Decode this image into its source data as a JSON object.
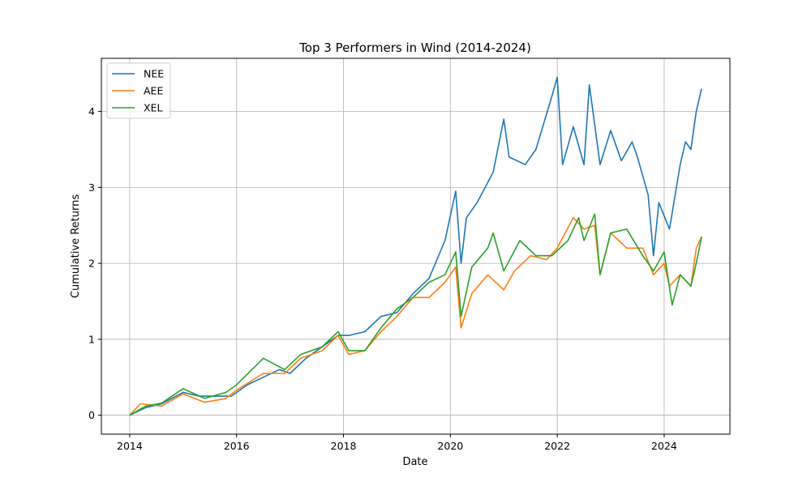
{
  "chart_data": {
    "type": "line",
    "title": "Top 3 Performers in Wind (2014-2024)",
    "xlabel": "Date",
    "ylabel": "Cumulative Returns",
    "xlim": [
      2013.47,
      2025.23
    ],
    "ylim": [
      -0.25,
      4.7
    ],
    "xticks": [
      2014,
      2016,
      2018,
      2020,
      2022,
      2024
    ],
    "xtick_labels": [
      "2014",
      "2016",
      "2018",
      "2020",
      "2022",
      "2024"
    ],
    "yticks": [
      0,
      1,
      2,
      3,
      4
    ],
    "ytick_labels": [
      "0",
      "1",
      "2",
      "3",
      "4"
    ],
    "grid": true,
    "legend_position": "top-left",
    "series": [
      {
        "name": "NEE",
        "color": "#1f77b4",
        "points": [
          [
            2014.0,
            0.0
          ],
          [
            2014.3,
            0.1
          ],
          [
            2014.6,
            0.15
          ],
          [
            2015.0,
            0.3
          ],
          [
            2015.3,
            0.25
          ],
          [
            2015.6,
            0.25
          ],
          [
            2015.9,
            0.25
          ],
          [
            2016.2,
            0.4
          ],
          [
            2016.5,
            0.5
          ],
          [
            2016.8,
            0.6
          ],
          [
            2017.0,
            0.55
          ],
          [
            2017.3,
            0.75
          ],
          [
            2017.6,
            0.9
          ],
          [
            2017.9,
            1.05
          ],
          [
            2018.1,
            1.05
          ],
          [
            2018.4,
            1.1
          ],
          [
            2018.7,
            1.3
          ],
          [
            2019.0,
            1.35
          ],
          [
            2019.3,
            1.6
          ],
          [
            2019.6,
            1.8
          ],
          [
            2019.9,
            2.3
          ],
          [
            2020.1,
            2.95
          ],
          [
            2020.2,
            2.0
          ],
          [
            2020.3,
            2.6
          ],
          [
            2020.5,
            2.8
          ],
          [
            2020.8,
            3.2
          ],
          [
            2021.0,
            3.9
          ],
          [
            2021.1,
            3.4
          ],
          [
            2021.4,
            3.3
          ],
          [
            2021.6,
            3.5
          ],
          [
            2021.9,
            4.2
          ],
          [
            2022.0,
            4.45
          ],
          [
            2022.1,
            3.3
          ],
          [
            2022.3,
            3.8
          ],
          [
            2022.5,
            3.3
          ],
          [
            2022.6,
            4.35
          ],
          [
            2022.8,
            3.3
          ],
          [
            2023.0,
            3.75
          ],
          [
            2023.2,
            3.35
          ],
          [
            2023.4,
            3.6
          ],
          [
            2023.5,
            3.4
          ],
          [
            2023.7,
            2.9
          ],
          [
            2023.8,
            2.1
          ],
          [
            2023.9,
            2.8
          ],
          [
            2024.1,
            2.45
          ],
          [
            2024.3,
            3.3
          ],
          [
            2024.4,
            3.6
          ],
          [
            2024.5,
            3.5
          ],
          [
            2024.6,
            4.0
          ],
          [
            2024.7,
            4.3
          ]
        ]
      },
      {
        "name": "AEE",
        "color": "#ff7f0e",
        "points": [
          [
            2014.0,
            0.0
          ],
          [
            2014.2,
            0.15
          ],
          [
            2014.6,
            0.12
          ],
          [
            2015.0,
            0.28
          ],
          [
            2015.4,
            0.17
          ],
          [
            2015.8,
            0.22
          ],
          [
            2016.0,
            0.33
          ],
          [
            2016.5,
            0.55
          ],
          [
            2016.9,
            0.55
          ],
          [
            2017.2,
            0.75
          ],
          [
            2017.6,
            0.85
          ],
          [
            2017.9,
            1.05
          ],
          [
            2018.1,
            0.8
          ],
          [
            2018.4,
            0.85
          ],
          [
            2018.7,
            1.1
          ],
          [
            2019.0,
            1.3
          ],
          [
            2019.3,
            1.55
          ],
          [
            2019.6,
            1.55
          ],
          [
            2019.9,
            1.75
          ],
          [
            2020.1,
            1.95
          ],
          [
            2020.2,
            1.15
          ],
          [
            2020.4,
            1.6
          ],
          [
            2020.7,
            1.85
          ],
          [
            2021.0,
            1.65
          ],
          [
            2021.2,
            1.9
          ],
          [
            2021.5,
            2.1
          ],
          [
            2021.8,
            2.05
          ],
          [
            2022.0,
            2.2
          ],
          [
            2022.3,
            2.6
          ],
          [
            2022.5,
            2.45
          ],
          [
            2022.7,
            2.5
          ],
          [
            2022.8,
            1.85
          ],
          [
            2023.0,
            2.4
          ],
          [
            2023.3,
            2.2
          ],
          [
            2023.6,
            2.2
          ],
          [
            2023.8,
            1.85
          ],
          [
            2024.0,
            2.0
          ],
          [
            2024.1,
            1.7
          ],
          [
            2024.3,
            1.85
          ],
          [
            2024.5,
            1.7
          ],
          [
            2024.6,
            2.2
          ],
          [
            2024.7,
            2.35
          ]
        ]
      },
      {
        "name": "XEL",
        "color": "#2ca02c",
        "points": [
          [
            2014.0,
            0.0
          ],
          [
            2014.3,
            0.12
          ],
          [
            2014.6,
            0.16
          ],
          [
            2015.0,
            0.35
          ],
          [
            2015.4,
            0.22
          ],
          [
            2015.8,
            0.3
          ],
          [
            2016.0,
            0.4
          ],
          [
            2016.5,
            0.75
          ],
          [
            2016.9,
            0.6
          ],
          [
            2017.2,
            0.8
          ],
          [
            2017.6,
            0.9
          ],
          [
            2017.9,
            1.1
          ],
          [
            2018.1,
            0.85
          ],
          [
            2018.4,
            0.85
          ],
          [
            2018.7,
            1.15
          ],
          [
            2019.0,
            1.4
          ],
          [
            2019.3,
            1.55
          ],
          [
            2019.6,
            1.75
          ],
          [
            2019.9,
            1.85
          ],
          [
            2020.1,
            2.15
          ],
          [
            2020.2,
            1.3
          ],
          [
            2020.4,
            1.95
          ],
          [
            2020.7,
            2.2
          ],
          [
            2020.8,
            2.4
          ],
          [
            2021.0,
            1.9
          ],
          [
            2021.3,
            2.3
          ],
          [
            2021.6,
            2.1
          ],
          [
            2021.9,
            2.1
          ],
          [
            2022.2,
            2.3
          ],
          [
            2022.4,
            2.6
          ],
          [
            2022.5,
            2.3
          ],
          [
            2022.7,
            2.65
          ],
          [
            2022.8,
            1.85
          ],
          [
            2023.0,
            2.4
          ],
          [
            2023.3,
            2.45
          ],
          [
            2023.6,
            2.1
          ],
          [
            2023.8,
            1.9
          ],
          [
            2024.0,
            2.15
          ],
          [
            2024.15,
            1.45
          ],
          [
            2024.3,
            1.85
          ],
          [
            2024.5,
            1.7
          ],
          [
            2024.6,
            2.0
          ],
          [
            2024.7,
            2.35
          ]
        ]
      }
    ]
  }
}
